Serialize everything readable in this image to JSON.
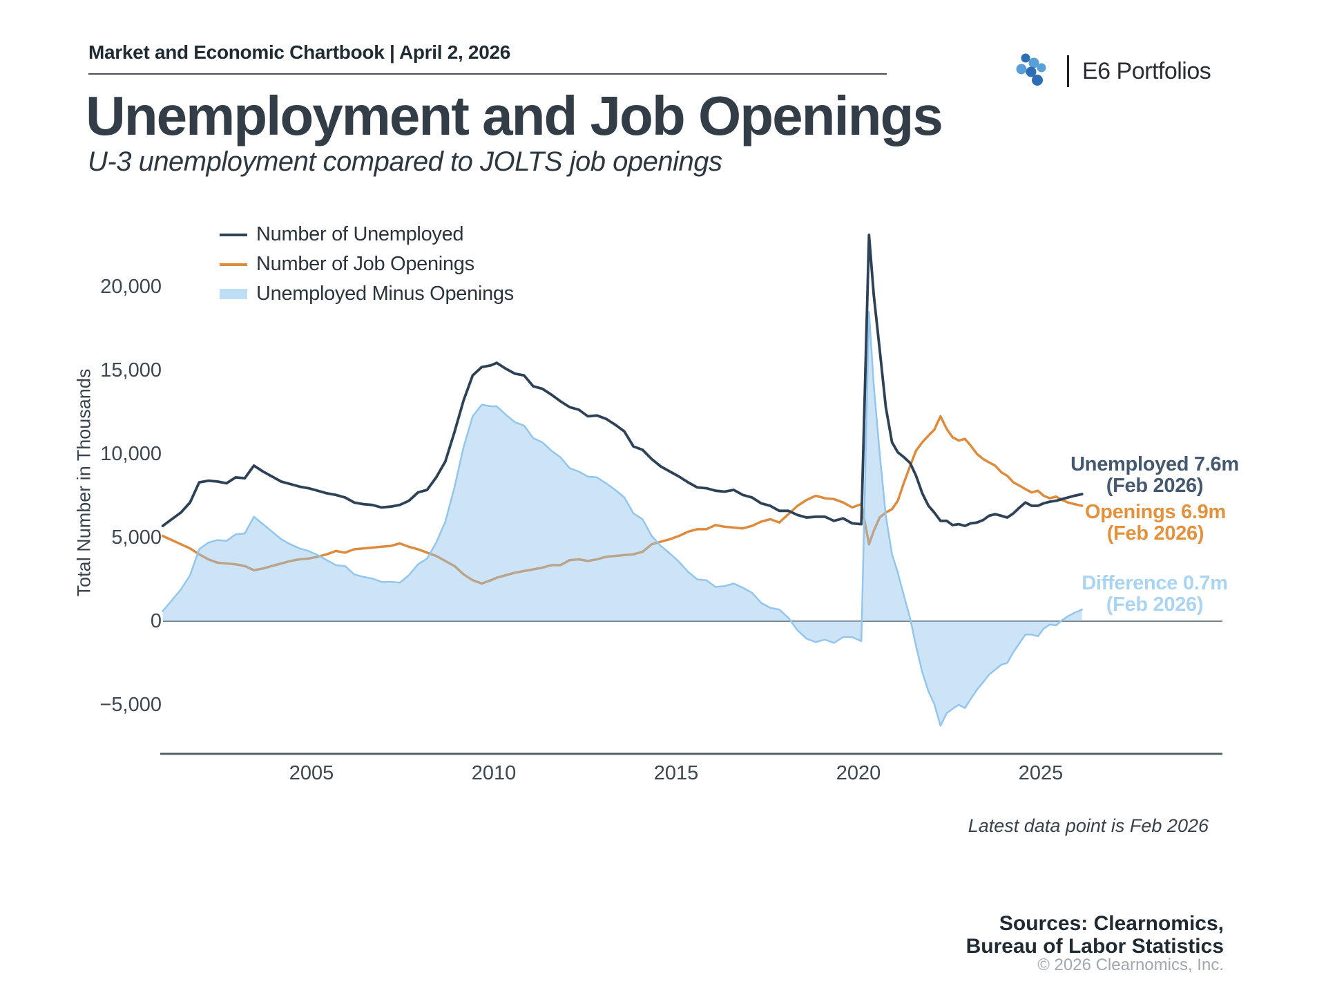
{
  "header": {
    "report_title": "Market and Economic Chartbook | April 2, 2026",
    "brand_name": "E6 Portfolios"
  },
  "page": {
    "title": "Unemployment and Job Openings",
    "subtitle": "U-3 unemployment compared to JOLTS job openings"
  },
  "legend": {
    "items": [
      {
        "label": "Number of Unemployed"
      },
      {
        "label": "Number of Job Openings"
      },
      {
        "label": "Unemployed Minus Openings"
      }
    ]
  },
  "axes": {
    "y_title": "Total Number in Thousands",
    "y_ticks": [
      "20,000",
      "15,000",
      "10,000",
      "5,000",
      "0",
      "−5,000"
    ],
    "x_ticks": [
      "2005",
      "2010",
      "2015",
      "2020",
      "2025"
    ]
  },
  "annotations": {
    "unemployed": {
      "line1": "Unemployed 7.6m",
      "line2": "(Feb 2026)"
    },
    "openings": {
      "line1": "Openings 6.9m",
      "line2": "(Feb 2026)"
    },
    "difference": {
      "line1": "Difference 0.7m",
      "line2": "(Feb 2026)"
    },
    "latest_note": "Latest data point is Feb 2026"
  },
  "footer": {
    "sources_line1": "Sources: Clearnomics,",
    "sources_line2": "Bureau of Labor Statistics",
    "copyright": "© 2026 Clearnomics, Inc."
  },
  "colors": {
    "unemployed_line": "#2d4157",
    "openings_line": "#dd8c3e",
    "difference_fill": "rgba(144,195,235,0.45)",
    "difference_edge": "#93c6ee",
    "zero_line": "#76828c",
    "axis_line": "#55606a",
    "brand_blue_dark": "#2d6db6",
    "brand_blue_light": "#5aa0d8"
  },
  "chart_data": {
    "type": "line",
    "title": "Unemployment and Job Openings",
    "subtitle": "U-3 unemployment compared to JOLTS job openings",
    "ylabel": "Total Number in Thousands",
    "x_unit": "decimal_year",
    "xlim": [
      2000.92,
      2026.13
    ],
    "ylim": [
      -7900,
      23500
    ],
    "y_tick_values": [
      20000,
      15000,
      10000,
      5000,
      0,
      -5000
    ],
    "x_tick_values": [
      2005,
      2010,
      2015,
      2020,
      2025
    ],
    "grid": false,
    "legend_position": "top-left",
    "latest": {
      "period": "Feb 2026",
      "unemployed": 7600,
      "openings": 6900,
      "difference": 700
    },
    "x": [
      2000.92,
      2001.17,
      2001.42,
      2001.67,
      2001.92,
      2002.17,
      2002.42,
      2002.67,
      2002.92,
      2003.17,
      2003.42,
      2003.67,
      2003.92,
      2004.17,
      2004.42,
      2004.67,
      2004.92,
      2005.17,
      2005.42,
      2005.67,
      2005.92,
      2006.17,
      2006.42,
      2006.67,
      2006.92,
      2007.17,
      2007.42,
      2007.67,
      2007.92,
      2008.17,
      2008.42,
      2008.67,
      2008.92,
      2009.17,
      2009.42,
      2009.67,
      2009.92,
      2010.08,
      2010.33,
      2010.58,
      2010.83,
      2011.08,
      2011.33,
      2011.58,
      2011.83,
      2012.08,
      2012.33,
      2012.58,
      2012.83,
      2013.08,
      2013.33,
      2013.58,
      2013.83,
      2014.08,
      2014.33,
      2014.58,
      2014.83,
      2015.08,
      2015.33,
      2015.58,
      2015.83,
      2016.08,
      2016.33,
      2016.58,
      2016.83,
      2017.08,
      2017.33,
      2017.58,
      2017.83,
      2018.08,
      2018.33,
      2018.58,
      2018.83,
      2019.08,
      2019.33,
      2019.58,
      2019.83,
      2020.08,
      2020.29,
      2020.42,
      2020.58,
      2020.75,
      2020.92,
      2021.08,
      2021.25,
      2021.42,
      2021.58,
      2021.75,
      2021.92,
      2022.08,
      2022.25,
      2022.42,
      2022.58,
      2022.75,
      2022.92,
      2023.08,
      2023.25,
      2023.42,
      2023.58,
      2023.75,
      2023.92,
      2024.08,
      2024.25,
      2024.42,
      2024.58,
      2024.75,
      2024.92,
      2025.08,
      2025.25,
      2025.42,
      2025.58,
      2025.75,
      2025.92,
      2026.13
    ],
    "series": [
      {
        "name": "Number of Unemployed",
        "type": "line",
        "color": "#2d4157",
        "values": [
          5700,
          6100,
          6500,
          7100,
          8300,
          8400,
          8350,
          8250,
          8600,
          8550,
          9300,
          8950,
          8650,
          8350,
          8200,
          8050,
          7950,
          7800,
          7650,
          7550,
          7400,
          7100,
          7000,
          6950,
          6800,
          6850,
          6950,
          7200,
          7700,
          7850,
          8600,
          9550,
          11300,
          13200,
          14700,
          15200,
          15300,
          15450,
          15100,
          14800,
          14700,
          14050,
          13900,
          13550,
          13150,
          12800,
          12650,
          12250,
          12300,
          12100,
          11750,
          11350,
          10450,
          10250,
          9700,
          9250,
          8950,
          8650,
          8300,
          8000,
          7950,
          7800,
          7750,
          7850,
          7550,
          7400,
          7050,
          6900,
          6600,
          6600,
          6350,
          6200,
          6250,
          6250,
          6000,
          6150,
          5850,
          5800,
          23100,
          19500,
          16300,
          12800,
          10700,
          10100,
          9800,
          9450,
          8700,
          7650,
          6900,
          6500,
          6000,
          6000,
          5750,
          5800,
          5700,
          5850,
          5900,
          6050,
          6300,
          6400,
          6300,
          6200,
          6450,
          6800,
          7100,
          6900,
          6900,
          7050,
          7150,
          7200,
          7300,
          7400,
          7500,
          7600
        ]
      },
      {
        "name": "Number of Job Openings",
        "type": "line",
        "color": "#dd8c3e",
        "values": [
          5100,
          4850,
          4600,
          4350,
          4000,
          3700,
          3500,
          3450,
          3400,
          3300,
          3050,
          3150,
          3300,
          3450,
          3600,
          3700,
          3750,
          3850,
          4000,
          4200,
          4100,
          4300,
          4350,
          4400,
          4450,
          4500,
          4650,
          4450,
          4300,
          4100,
          3900,
          3600,
          3300,
          2800,
          2450,
          2250,
          2450,
          2600,
          2750,
          2900,
          3000,
          3100,
          3200,
          3350,
          3350,
          3650,
          3700,
          3600,
          3700,
          3850,
          3900,
          3950,
          4000,
          4150,
          4600,
          4750,
          4900,
          5100,
          5350,
          5500,
          5500,
          5750,
          5650,
          5600,
          5550,
          5700,
          5950,
          6100,
          5900,
          6400,
          6900,
          7250,
          7500,
          7350,
          7300,
          7100,
          6800,
          7000,
          4600,
          5400,
          6200,
          6500,
          6700,
          7200,
          8300,
          9300,
          10200,
          10700,
          11100,
          11450,
          12250,
          11500,
          11000,
          10800,
          10900,
          10500,
          10000,
          9700,
          9500,
          9300,
          8900,
          8700,
          8300,
          8100,
          7900,
          7700,
          7800,
          7500,
          7350,
          7450,
          7250,
          7100,
          7000,
          6900
        ]
      },
      {
        "name": "Unemployed Minus Openings",
        "type": "area",
        "color": "rgba(144,195,235,0.45)",
        "edge_color": "#93c6ee",
        "derived": "series[0] minus series[1]"
      }
    ]
  }
}
